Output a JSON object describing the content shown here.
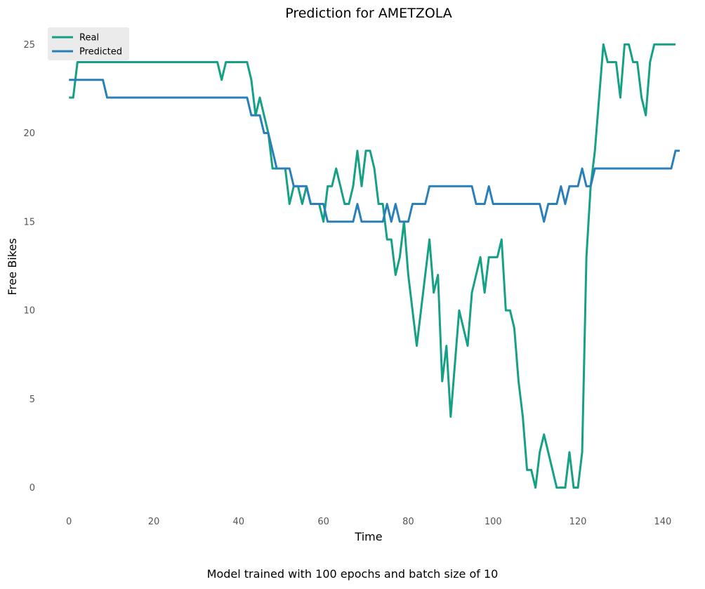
{
  "chart_data": {
    "type": "line",
    "title": "Prediction for AMETZOLA",
    "xlabel": "Time",
    "ylabel": "Free Bikes",
    "caption": "Model trained with 100 epochs and batch size of 10",
    "xlim": [
      -5,
      144
    ],
    "ylim": [
      -1.4,
      26
    ],
    "x_ticks": [
      0,
      20,
      40,
      60,
      80,
      100,
      120,
      140
    ],
    "y_ticks": [
      0,
      5,
      10,
      15,
      20,
      25
    ],
    "grid": false,
    "legend_position": "top-left",
    "series": [
      {
        "name": "Real",
        "color": "#16a085",
        "values": [
          22,
          22,
          24,
          24,
          24,
          24,
          24,
          24,
          24,
          24,
          24,
          24,
          24,
          24,
          24,
          24,
          24,
          24,
          24,
          24,
          24,
          24,
          24,
          24,
          24,
          24,
          24,
          24,
          24,
          24,
          24,
          24,
          24,
          24,
          24,
          24,
          23,
          24,
          24,
          24,
          24,
          24,
          24,
          23,
          21,
          22,
          21,
          20,
          18,
          18,
          18,
          18,
          16,
          17,
          17,
          16,
          17,
          16,
          16,
          16,
          15,
          17,
          17,
          18,
          17,
          16,
          16,
          17,
          19,
          17,
          19,
          19,
          18,
          16,
          16,
          14,
          14,
          12,
          13,
          15,
          12,
          10,
          8,
          10,
          12,
          14,
          11,
          12,
          6,
          8,
          4,
          7,
          10,
          9,
          8,
          11,
          12,
          13,
          11,
          13,
          13,
          13,
          14,
          10,
          10,
          9,
          6,
          4,
          1,
          1,
          0,
          2,
          3,
          2,
          1,
          0,
          0,
          0,
          2,
          0,
          0,
          2,
          13,
          17,
          19,
          22,
          25,
          24,
          24,
          24,
          22,
          25,
          25,
          24,
          24,
          22,
          21,
          24,
          25,
          25,
          25,
          25,
          25,
          25
        ]
      },
      {
        "name": "Predicted",
        "color": "#2980b9",
        "values": [
          23,
          23,
          23,
          23,
          23,
          23,
          23,
          23,
          23,
          22,
          22,
          22,
          22,
          22,
          22,
          22,
          22,
          22,
          22,
          22,
          22,
          22,
          22,
          22,
          22,
          22,
          22,
          22,
          22,
          22,
          22,
          22,
          22,
          22,
          22,
          22,
          22,
          22,
          22,
          22,
          22,
          22,
          22,
          21,
          21,
          21,
          20,
          20,
          19,
          18,
          18,
          18,
          18,
          17,
          17,
          17,
          17,
          16,
          16,
          16,
          16,
          15,
          15,
          15,
          15,
          15,
          15,
          15,
          16,
          15,
          15,
          15,
          15,
          15,
          15,
          16,
          15,
          16,
          15,
          15,
          15,
          16,
          16,
          16,
          16,
          17,
          17,
          17,
          17,
          17,
          17,
          17,
          17,
          17,
          17,
          17,
          16,
          16,
          16,
          17,
          16,
          16,
          16,
          16,
          16,
          16,
          16,
          16,
          16,
          16,
          16,
          16,
          15,
          16,
          16,
          16,
          17,
          16,
          17,
          17,
          17,
          18,
          17,
          17,
          18,
          18,
          18,
          18,
          18,
          18,
          18,
          18,
          18,
          18,
          18,
          18,
          18,
          18,
          18,
          18,
          18,
          18,
          18,
          19,
          19
        ]
      }
    ]
  }
}
